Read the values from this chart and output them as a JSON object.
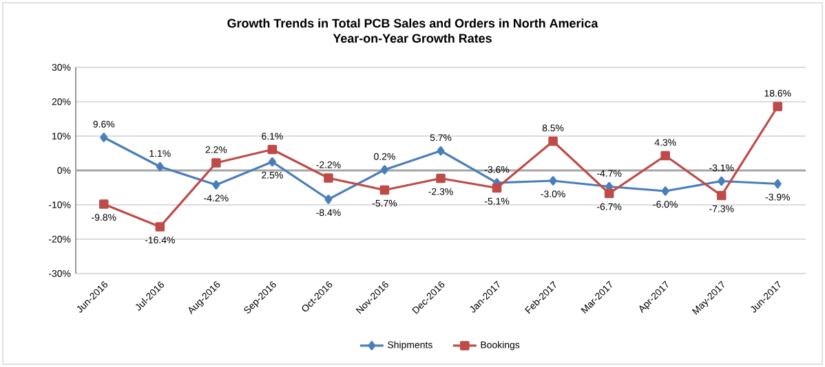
{
  "chart_data": {
    "type": "line",
    "title": "Growth Trends in Total PCB Sales and Orders in North America",
    "subtitle": "Year-on-Year Growth Rates",
    "categories": [
      "Jun-2016",
      "Jul-2016",
      "Aug-2016",
      "Sep-2016",
      "Oct-2016",
      "Nov-2016",
      "Dec-2016",
      "Jan-2017",
      "Feb-2017",
      "Mar-2017",
      "Apr-2017",
      "May-2017",
      "Jun-2017"
    ],
    "series": [
      {
        "name": "Shipments",
        "color": "#4a7ebb",
        "marker": "diamond",
        "values": [
          9.6,
          1.1,
          -4.2,
          2.5,
          -8.4,
          0.2,
          5.7,
          -3.6,
          -3.0,
          -4.7,
          -6.0,
          -3.1,
          -3.9
        ],
        "value_labels": [
          "9.6%",
          "1.1%",
          "-4.2%",
          "2.5%",
          "-8.4%",
          "0.2%",
          "5.7%",
          "-3.6%",
          "-3.0%",
          "-4.7%",
          "-6.0%",
          "-3.1%",
          "-3.9%"
        ]
      },
      {
        "name": "Bookings",
        "color": "#be4b48",
        "marker": "square",
        "values": [
          -9.8,
          -16.4,
          2.2,
          6.1,
          -2.2,
          -5.7,
          -2.3,
          -5.1,
          8.5,
          -6.7,
          4.3,
          -7.3,
          18.6
        ],
        "value_labels": [
          "-9.8%",
          "-16.4%",
          "2.2%",
          "6.1%",
          "-2.2%",
          "-5.7%",
          "-2.3%",
          "-5.1%",
          "8.5%",
          "-6.7%",
          "4.3%",
          "-7.3%",
          "18.6%"
        ]
      }
    ],
    "ylim": [
      -30,
      30
    ],
    "yticks": [
      {
        "value": -30,
        "label": "-30%"
      },
      {
        "value": -20,
        "label": "-20%"
      },
      {
        "value": -10,
        "label": "-10%"
      },
      {
        "value": 0,
        "label": "0%"
      },
      {
        "value": 10,
        "label": "10%"
      },
      {
        "value": 20,
        "label": "20%"
      },
      {
        "value": 30,
        "label": "30%"
      }
    ],
    "grid": "y",
    "legend": "bottom",
    "line_style": "solid"
  }
}
